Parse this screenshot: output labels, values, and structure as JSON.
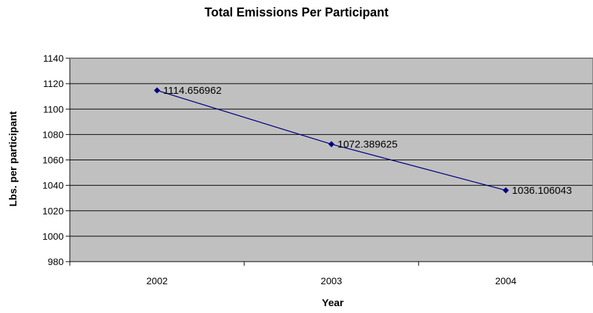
{
  "chart_data": {
    "type": "line",
    "title": "Total Emissions Per Participant",
    "xlabel": "Year",
    "ylabel": "Lbs. per participant",
    "categories": [
      "2002",
      "2003",
      "2004"
    ],
    "series": [
      {
        "values": [
          1114.656962,
          1072.389625,
          1036.106043
        ],
        "labels": [
          "1114.656962",
          "1072.389625",
          "1036.106043"
        ],
        "color": "#000080"
      }
    ],
    "ylim": [
      980,
      1140
    ],
    "yticks": [
      980,
      1000,
      1020,
      1040,
      1060,
      1080,
      1100,
      1120,
      1140
    ],
    "grid": true,
    "legend": "none",
    "plot_background": "#c0c0c0"
  }
}
